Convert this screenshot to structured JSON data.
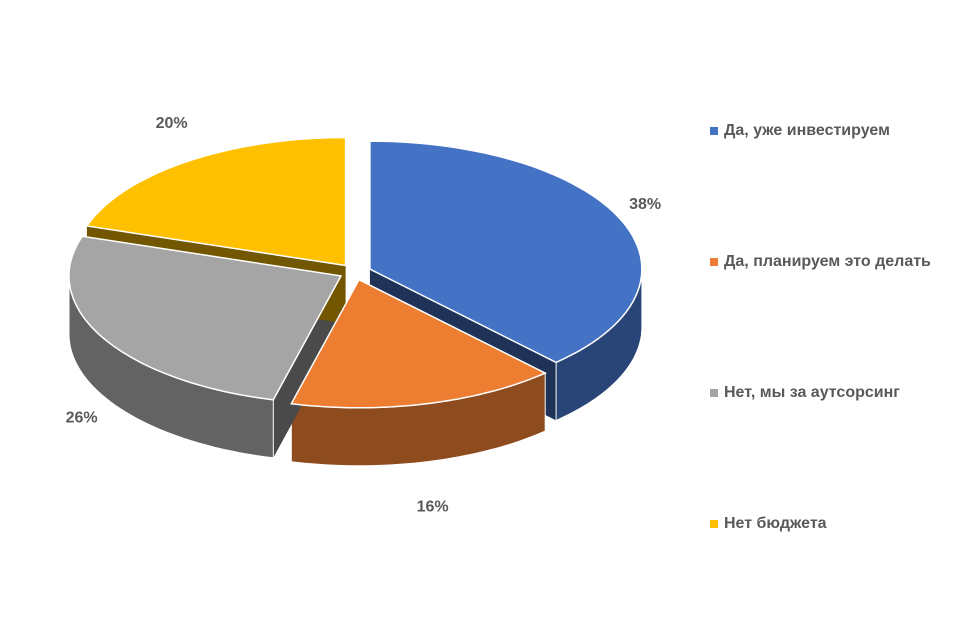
{
  "chart_data": {
    "type": "pie3d",
    "categories": [
      "Да, уже инвестируем",
      "Да, планируем это делать",
      "Нет, мы за аутсорсинг",
      "Нет бюджета"
    ],
    "values": [
      38,
      16,
      26,
      20
    ],
    "value_labels": [
      "38%",
      "16%",
      "26%",
      "20%"
    ],
    "colors": [
      "#4472c4",
      "#ed7d31",
      "#a5a5a5",
      "#ffc000"
    ],
    "legend": "right"
  }
}
